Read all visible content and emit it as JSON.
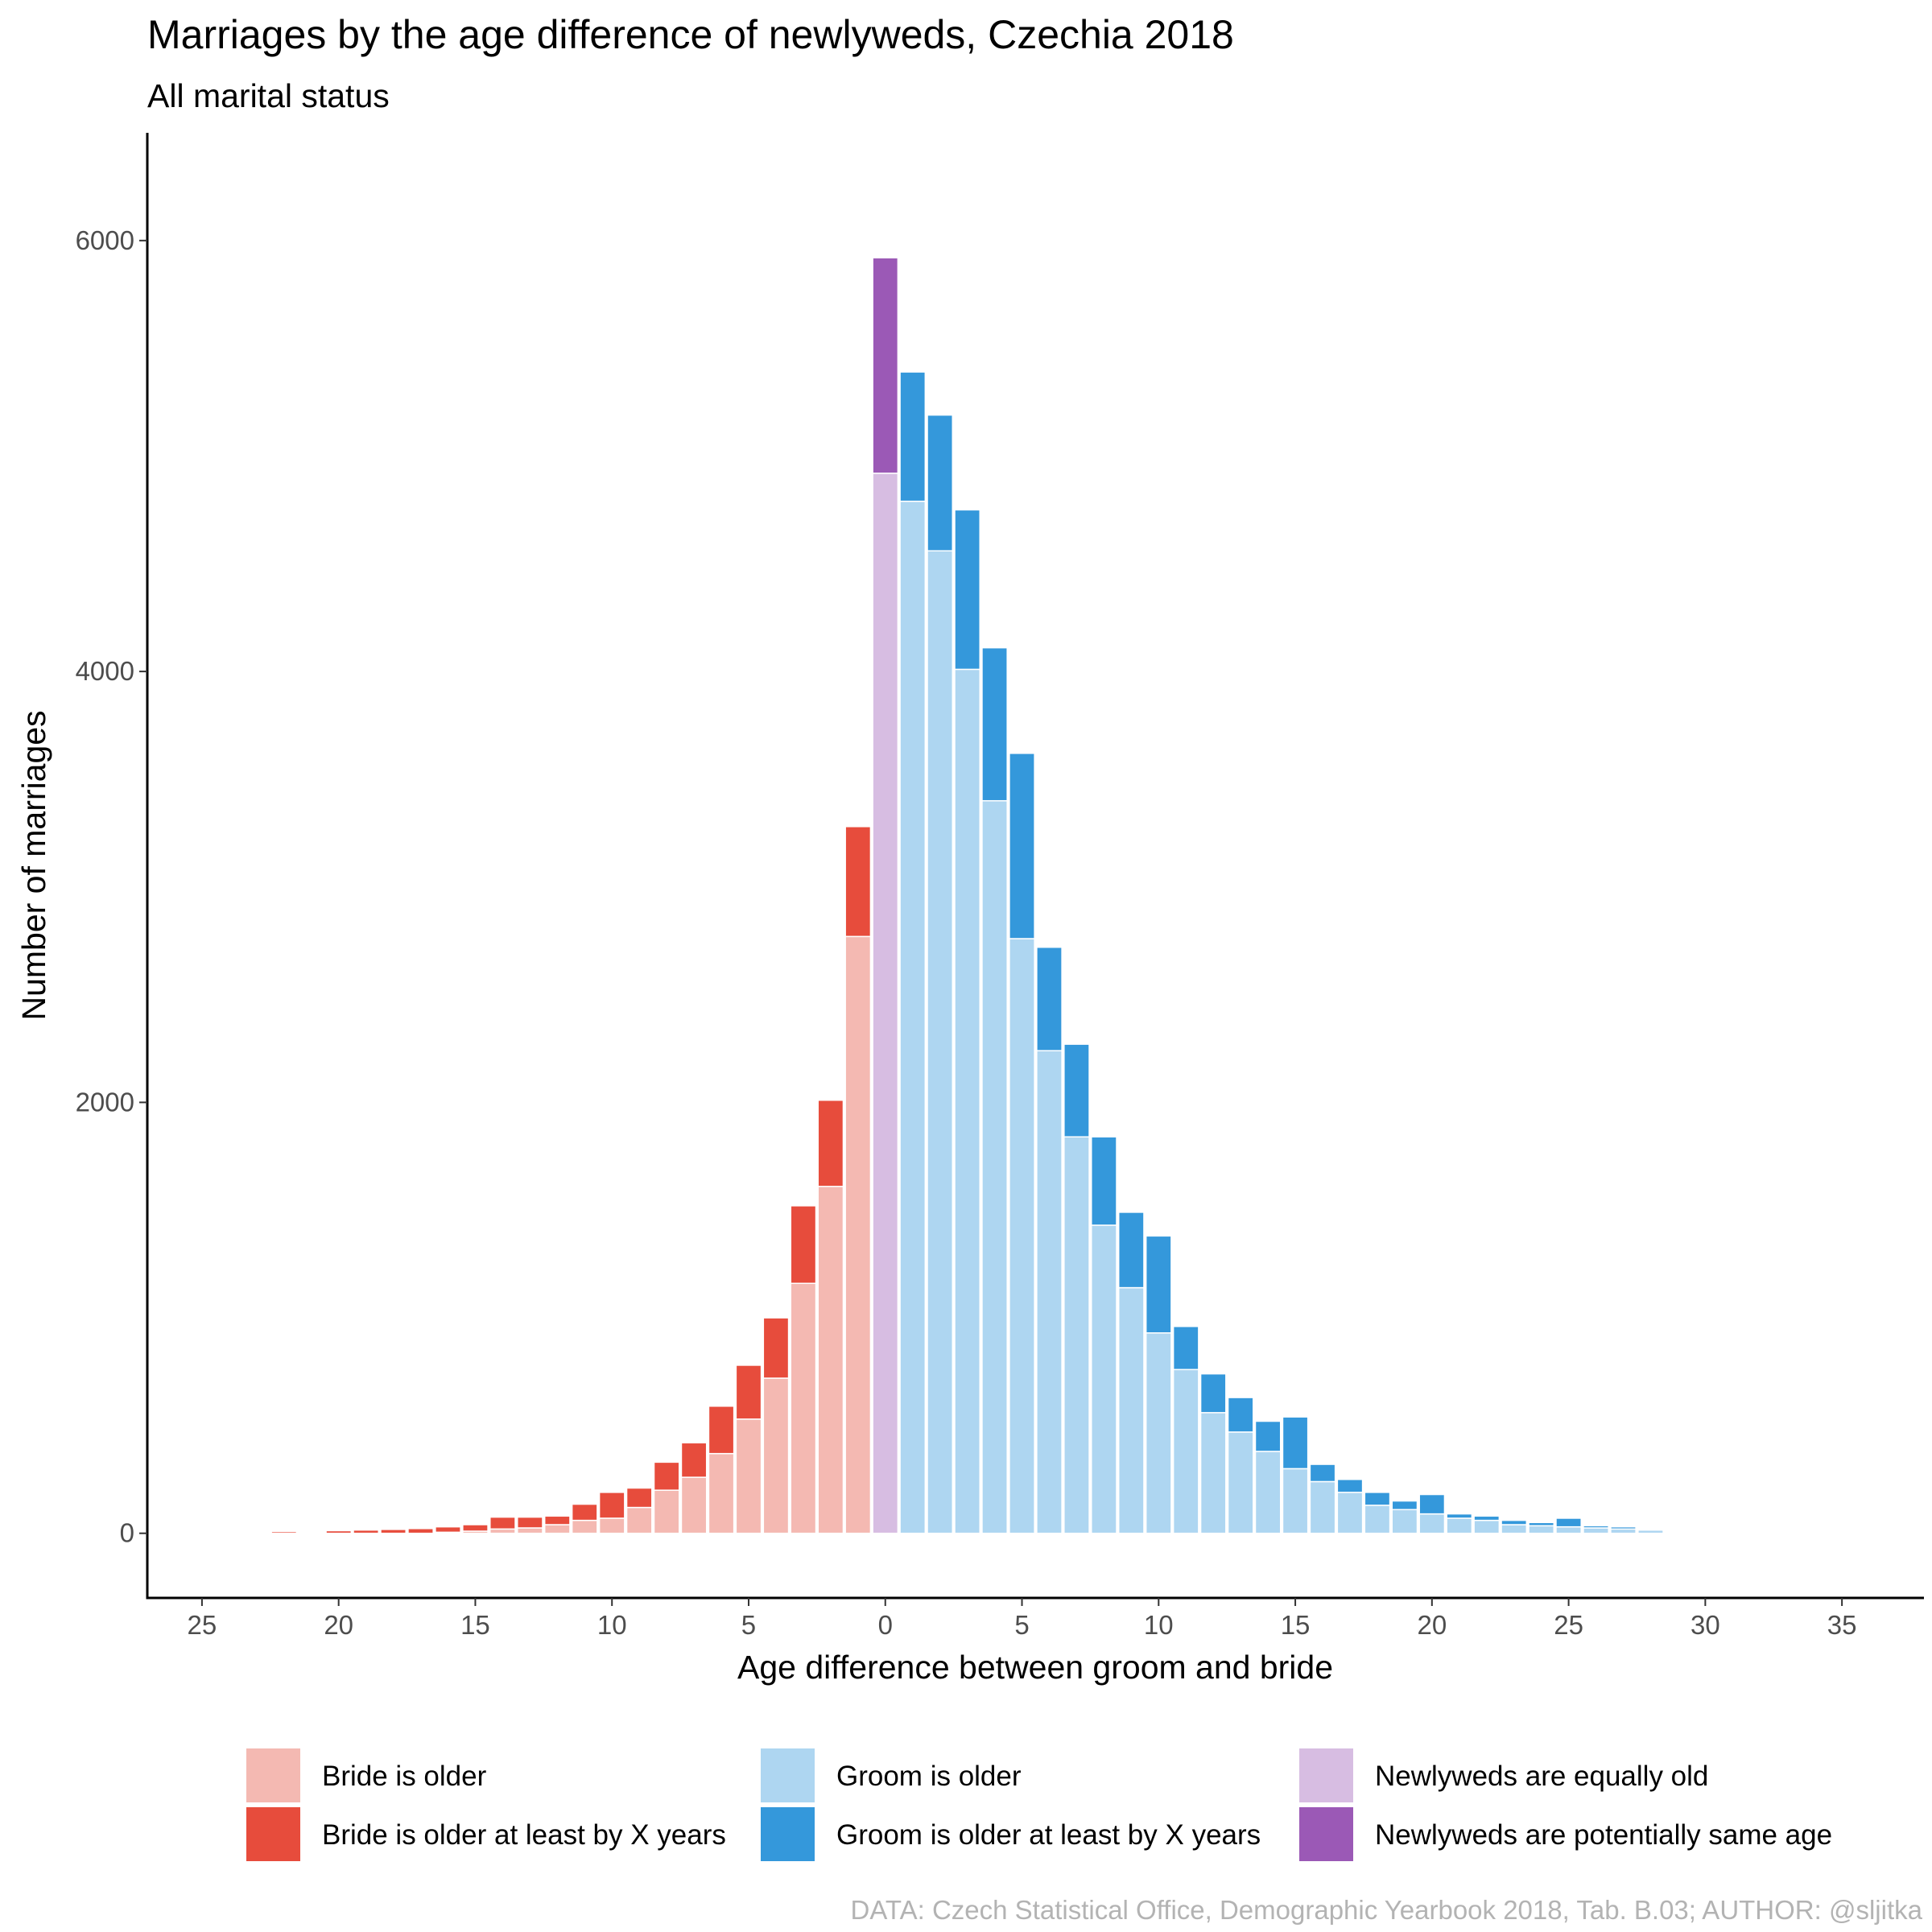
{
  "chart_data": {
    "type": "bar",
    "title": "Marriages by the age difference of newlyweds, Czechia 2018",
    "subtitle": "All marital status",
    "xlabel": "Age difference between groom and bride",
    "ylabel": "Number of marriages",
    "caption": "DATA: Czech Statistical Office, Demographic Yearbook 2018, Tab. B.03; AUTHOR: @sljitka",
    "xlim": [
      -27,
      38
    ],
    "ylim": [
      -300,
      6500
    ],
    "x_ticks": [
      {
        "value": -25,
        "label": "25"
      },
      {
        "value": -20,
        "label": "20"
      },
      {
        "value": -15,
        "label": "15"
      },
      {
        "value": -10,
        "label": "10"
      },
      {
        "value": -5,
        "label": "5"
      },
      {
        "value": 0,
        "label": "0"
      },
      {
        "value": 5,
        "label": "5"
      },
      {
        "value": 10,
        "label": "10"
      },
      {
        "value": 15,
        "label": "15"
      },
      {
        "value": 20,
        "label": "20"
      },
      {
        "value": 25,
        "label": "25"
      },
      {
        "value": 30,
        "label": "30"
      },
      {
        "value": 35,
        "label": "35"
      }
    ],
    "y_ticks": [
      0,
      2000,
      4000,
      6000
    ],
    "grid": false,
    "legend_position": "bottom",
    "stacking": "stacked",
    "colors": {
      "bride_older": "#f4b9b2",
      "bride_older_at_least": "#e74c3c",
      "groom_older": "#aed6f1",
      "groom_older_at_least": "#3498db",
      "equally_old": "#d7bde2",
      "potentially_same_age": "#9b59b6"
    },
    "legend": [
      {
        "key": "bride_older",
        "label": "Bride is older"
      },
      {
        "key": "groom_older",
        "label": "Groom is older"
      },
      {
        "key": "equally_old",
        "label": "Newlyweds are equally old"
      },
      {
        "key": "bride_older_at_least",
        "label": "Bride is older at least by X years"
      },
      {
        "key": "groom_older_at_least",
        "label": "Groom is older at least by X years"
      },
      {
        "key": "potentially_same_age",
        "label": "Newlyweds are potentially same age"
      }
    ],
    "series": [
      {
        "key": "bride_older",
        "values": [
          [
            -22,
            0
          ],
          [
            -20,
            0
          ],
          [
            -19,
            0
          ],
          [
            -18,
            0
          ],
          [
            -17,
            0
          ],
          [
            -16,
            5
          ],
          [
            -15,
            10
          ],
          [
            -14,
            20
          ],
          [
            -13,
            25
          ],
          [
            -12,
            40
          ],
          [
            -11,
            60
          ],
          [
            -10,
            70
          ],
          [
            -9,
            120
          ],
          [
            -8,
            200
          ],
          [
            -7,
            260
          ],
          [
            -6,
            370
          ],
          [
            -5,
            530
          ],
          [
            -4,
            720
          ],
          [
            -3,
            1160
          ],
          [
            -2,
            1610
          ],
          [
            -1,
            2770
          ]
        ]
      },
      {
        "key": "bride_older_at_least",
        "values": [
          [
            -22,
            8
          ],
          [
            -20,
            12
          ],
          [
            -19,
            15
          ],
          [
            -18,
            18
          ],
          [
            -17,
            22
          ],
          [
            -16,
            25
          ],
          [
            -15,
            30
          ],
          [
            -14,
            55
          ],
          [
            -13,
            50
          ],
          [
            -12,
            40
          ],
          [
            -11,
            75
          ],
          [
            -10,
            120
          ],
          [
            -9,
            90
          ],
          [
            -8,
            130
          ],
          [
            -7,
            160
          ],
          [
            -6,
            220
          ],
          [
            -5,
            250
          ],
          [
            -4,
            280
          ],
          [
            -3,
            360
          ],
          [
            -2,
            400
          ],
          [
            -1,
            510
          ]
        ]
      },
      {
        "key": "equally_old",
        "values": [
          [
            0,
            4920
          ]
        ]
      },
      {
        "key": "potentially_same_age",
        "values": [
          [
            0,
            1000
          ]
        ]
      },
      {
        "key": "groom_older",
        "values": [
          [
            1,
            4790
          ],
          [
            2,
            4560
          ],
          [
            3,
            4010
          ],
          [
            4,
            3400
          ],
          [
            5,
            2760
          ],
          [
            6,
            2240
          ],
          [
            7,
            1840
          ],
          [
            8,
            1430
          ],
          [
            9,
            1140
          ],
          [
            10,
            930
          ],
          [
            11,
            760
          ],
          [
            12,
            560
          ],
          [
            13,
            470
          ],
          [
            14,
            380
          ],
          [
            15,
            300
          ],
          [
            16,
            240
          ],
          [
            17,
            190
          ],
          [
            18,
            130
          ],
          [
            19,
            110
          ],
          [
            20,
            90
          ],
          [
            21,
            70
          ],
          [
            22,
            60
          ],
          [
            23,
            40
          ],
          [
            24,
            35
          ],
          [
            25,
            30
          ],
          [
            26,
            25
          ],
          [
            27,
            20
          ],
          [
            28,
            15
          ],
          [
            29,
            5
          ],
          [
            30,
            5
          ],
          [
            31,
            5
          ],
          [
            32,
            3
          ],
          [
            33,
            3
          ],
          [
            34,
            2
          ]
        ]
      },
      {
        "key": "groom_older_at_least",
        "values": [
          [
            1,
            600
          ],
          [
            2,
            630
          ],
          [
            3,
            740
          ],
          [
            4,
            710
          ],
          [
            5,
            860
          ],
          [
            6,
            480
          ],
          [
            7,
            430
          ],
          [
            8,
            410
          ],
          [
            9,
            350
          ],
          [
            10,
            450
          ],
          [
            11,
            200
          ],
          [
            12,
            180
          ],
          [
            13,
            160
          ],
          [
            14,
            140
          ],
          [
            15,
            240
          ],
          [
            16,
            80
          ],
          [
            17,
            60
          ],
          [
            18,
            60
          ],
          [
            19,
            40
          ],
          [
            20,
            90
          ],
          [
            21,
            20
          ],
          [
            22,
            20
          ],
          [
            23,
            20
          ],
          [
            24,
            15
          ],
          [
            25,
            40
          ],
          [
            26,
            10
          ],
          [
            27,
            10
          ],
          [
            28,
            5
          ],
          [
            29,
            5
          ],
          [
            30,
            5
          ],
          [
            31,
            5
          ],
          [
            32,
            5
          ],
          [
            33,
            5
          ],
          [
            34,
            5
          ]
        ]
      }
    ]
  }
}
